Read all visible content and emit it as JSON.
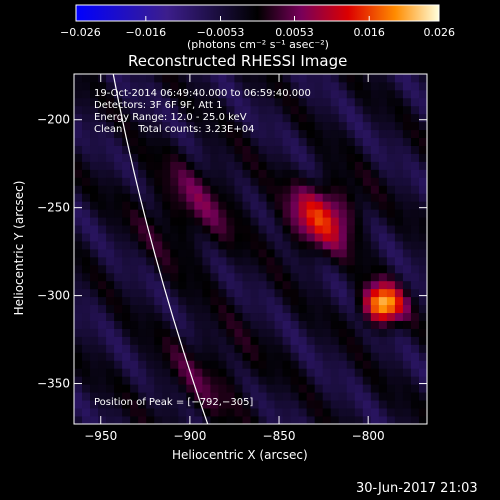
{
  "chart_data": {
    "type": "heatmap",
    "title": "Reconstructed RHESSI Image",
    "xlabel": "Heliocentric X (arcsec)",
    "ylabel": "Heliocentric Y (arcsec)",
    "xlim": [
      -965,
      -767
    ],
    "ylim": [
      -373,
      -174
    ],
    "x_ticks": [
      -950,
      -900,
      -850,
      -800
    ],
    "y_ticks": [
      -200,
      -250,
      -300,
      -350
    ],
    "x_tick_labels": [
      "−950",
      "−900",
      "−850",
      "−800"
    ],
    "y_tick_labels": [
      "−200",
      "−250",
      "−300",
      "−350"
    ],
    "colorbar": {
      "min": -0.026,
      "max": 0.026,
      "ticks": [
        -0.026,
        -0.016,
        -0.0053,
        0.0053,
        0.016,
        0.026
      ],
      "tick_labels": [
        "−0.026",
        "−0.016",
        "−0.0053",
        "0.0053",
        "0.016",
        "0.026"
      ],
      "unit_label": "(photons cm⁻² s⁻¹ asec⁻²)"
    },
    "annotations": {
      "time_range": "19-Oct-2014 06:49:40.000 to 06:59:40.000",
      "detectors": "Detectors: 3F 6F 9F, Att 1",
      "energy": "Energy Range: 12.0 - 25.0 keV",
      "clean": "Clean     Total counts: 3.23E+04",
      "peak": "Position of Peak = [−792,−305]"
    },
    "peak_position": [
      -792,
      -305
    ],
    "sources": [
      {
        "x": -792,
        "y": -305,
        "amplitude": 0.026
      },
      {
        "x": -826,
        "y": -255,
        "amplitude": 0.016
      },
      {
        "x": -900,
        "y": -250,
        "amplitude": 0.007
      },
      {
        "x": -890,
        "y": -345,
        "amplitude": 0.005
      }
    ],
    "limb": {
      "x_at_y_min": -890,
      "x_at_y_max": -943
    }
  },
  "footer_date": "30-Jun-2017 21:03"
}
